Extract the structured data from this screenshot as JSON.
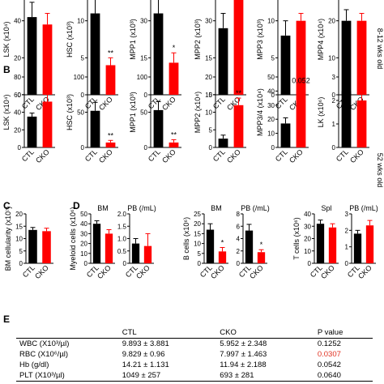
{
  "panel_labels": [
    "B",
    "C",
    "D",
    "E"
  ],
  "side_labels": [
    "8-12 wks old",
    "52 wks old"
  ],
  "chart_data": [
    {
      "type": "bar",
      "ylabel": "LSK (x10⁴)",
      "categories": [
        "CTL",
        "CKO"
      ],
      "values": [
        42,
        38
      ],
      "errors": [
        8,
        6
      ],
      "colors": [
        "#000000",
        "#ff0000"
      ],
      "ylim": [
        0,
        60
      ],
      "yticks": [
        0,
        20,
        40,
        60
      ]
    },
    {
      "type": "bar",
      "ylabel": "HSC (x10³)",
      "categories": [
        "CTL",
        "CKO"
      ],
      "values": [
        11,
        4
      ],
      "errors": [
        2.5,
        1
      ],
      "colors": [
        "#000000",
        "#ff0000"
      ],
      "ylim": [
        0,
        15
      ],
      "yticks": [
        0,
        5,
        10,
        15
      ],
      "value_annotations": [
        null,
        "**"
      ]
    },
    {
      "type": "bar",
      "ylabel": "MPP1 (x10³)",
      "categories": [
        "CTL",
        "CKO"
      ],
      "values": [
        33,
        13
      ],
      "errors": [
        8,
        4
      ],
      "colors": [
        "#000000",
        "#ff0000"
      ],
      "ylim": [
        0,
        45
      ],
      "yticks": [
        0,
        15,
        30,
        45
      ],
      "value_annotations": [
        null,
        "*"
      ]
    },
    {
      "type": "bar",
      "ylabel": "MPP2 (x10³)",
      "categories": [
        "CTL",
        "CKO"
      ],
      "values": [
        27,
        40
      ],
      "errors": [
        6,
        4
      ],
      "colors": [
        "#000000",
        "#ff0000"
      ],
      "ylim": [
        0,
        45
      ],
      "yticks": [
        0,
        15,
        30,
        45
      ]
    },
    {
      "type": "bar",
      "ylabel": "MPP3 (x10³)",
      "categories": [
        "CTL",
        "CKO"
      ],
      "values": [
        8,
        10
      ],
      "errors": [
        2,
        1
      ],
      "colors": [
        "#000000",
        "#ff0000"
      ],
      "ylim": [
        0,
        15
      ],
      "yticks": [
        0,
        5,
        10,
        15
      ]
    },
    {
      "type": "bar",
      "ylabel": "MPP4 (x10⁴)",
      "categories": [
        "CTL",
        "CKO"
      ],
      "values": [
        20,
        20
      ],
      "errors": [
        3,
        2
      ],
      "colors": [
        "#000000",
        "#ff0000"
      ],
      "ylim": [
        0,
        30
      ],
      "yticks": [
        0,
        10,
        20,
        30
      ]
    },
    {
      "type": "bar",
      "ylabel": "LSK (x10⁴)",
      "categories": [
        "CTL",
        "CKO"
      ],
      "values": [
        35,
        52
      ],
      "errors": [
        4,
        10
      ],
      "colors": [
        "#000000",
        "#ff0000"
      ],
      "ylim": [
        0,
        80
      ],
      "yticks": [
        0,
        20,
        40,
        60,
        80
      ]
    },
    {
      "type": "bar",
      "ylabel": "HSC (x10³)",
      "categories": [
        "CTL",
        "CKO"
      ],
      "values": [
        52,
        7
      ],
      "errors": [
        12,
        3
      ],
      "colors": [
        "#000000",
        "#ff0000"
      ],
      "ylim": [
        0,
        100
      ],
      "yticks": [
        0,
        50,
        100
      ],
      "value_annotations": [
        null,
        "**"
      ]
    },
    {
      "type": "bar",
      "ylabel": "MPP1 (x10³)",
      "categories": [
        "CTL",
        "CKO"
      ],
      "values": [
        53,
        7
      ],
      "errors": [
        12,
        4
      ],
      "colors": [
        "#000000",
        "#ff0000"
      ],
      "ylim": [
        0,
        100
      ],
      "yticks": [
        0,
        50,
        100
      ],
      "value_annotations": [
        null,
        "**"
      ]
    },
    {
      "type": "bar",
      "ylabel": "MPP2 (x10⁴)",
      "categories": [
        "CTL",
        "CKO"
      ],
      "values": [
        2.5,
        12
      ],
      "errors": [
        1,
        2
      ],
      "colors": [
        "#000000",
        "#ff0000"
      ],
      "ylim": [
        0,
        20
      ],
      "yticks": [
        0,
        5,
        10,
        15,
        20
      ],
      "value_annotations": [
        null,
        "**"
      ]
    },
    {
      "type": "bar",
      "ylabel": "MPP3/4 (x10⁴)",
      "categories": [
        "CTL",
        "CKO"
      ],
      "values": [
        17,
        38
      ],
      "errors": [
        4,
        6
      ],
      "colors": [
        "#000000",
        "#ff0000"
      ],
      "ylim": [
        0,
        50
      ],
      "yticks": [
        0,
        10,
        20,
        30,
        40,
        50
      ],
      "value_annotations": [
        null,
        "0.052"
      ]
    },
    {
      "type": "bar",
      "ylabel": "LK (x10⁶)",
      "categories": [
        "CTL",
        "CKO"
      ],
      "values": [
        2.4,
        2.0
      ],
      "errors": [
        0.4,
        0.3
      ],
      "colors": [
        "#000000",
        "#ff0000"
      ],
      "ylim": [
        0,
        3
      ],
      "yticks": [
        0,
        1,
        2,
        3
      ]
    },
    {
      "type": "bar",
      "ylabel": "BM cellularity (x10⁷)",
      "categories": [
        "CTL",
        "CKO"
      ],
      "values": [
        13.5,
        13
      ],
      "errors": [
        1,
        1.2
      ],
      "colors": [
        "#000000",
        "#ff0000"
      ],
      "ylim": [
        0,
        20
      ],
      "yticks": [
        0,
        5,
        10,
        15,
        20
      ]
    },
    {
      "type": "bar",
      "ylabel": "Myeloid cells (x10⁶)",
      "title": "BM",
      "categories": [
        "CTL",
        "CKO"
      ],
      "values": [
        40,
        30
      ],
      "errors": [
        3,
        4
      ],
      "colors": [
        "#000000",
        "#ff0000"
      ],
      "ylim": [
        0,
        50
      ],
      "yticks": [
        0,
        10,
        20,
        30,
        40,
        50
      ]
    },
    {
      "type": "bar",
      "title": "PB (/mL)",
      "categories": [
        "CTL",
        "CKO"
      ],
      "values": [
        0.8,
        0.7
      ],
      "errors": [
        0.2,
        0.5
      ],
      "colors": [
        "#000000",
        "#ff0000"
      ],
      "ylim": [
        0,
        2
      ],
      "yticks": [
        0,
        0.5,
        {
          "value": 1,
          "label": "1.0"
        },
        1.5,
        {
          "value": 2,
          "label": "2.0"
        }
      ]
    },
    {
      "type": "bar",
      "ylabel": "B cells (x10⁶)",
      "title": "BM",
      "categories": [
        "CTL",
        "CKO"
      ],
      "values": [
        17,
        6
      ],
      "errors": [
        3,
        2
      ],
      "colors": [
        "#000000",
        "#ff0000"
      ],
      "ylim": [
        0,
        25
      ],
      "yticks": [
        0,
        5,
        10,
        15,
        20,
        25
      ],
      "value_annotations": [
        null,
        "*"
      ]
    },
    {
      "type": "bar",
      "title": "PB (/mL)",
      "categories": [
        "CTL",
        "CKO"
      ],
      "values": [
        5.3,
        1.8
      ],
      "errors": [
        1,
        0.4
      ],
      "colors": [
        "#000000",
        "#ff0000"
      ],
      "ylim": [
        0,
        8
      ],
      "yticks": [
        0,
        2,
        4,
        6,
        8
      ],
      "value_annotations": [
        null,
        "*"
      ]
    },
    {
      "type": "bar",
      "ylabel": "T cells (x10⁶)",
      "title": "Spl",
      "categories": [
        "CTL",
        "CKO"
      ],
      "values": [
        32,
        29
      ],
      "errors": [
        3,
        3
      ],
      "colors": [
        "#000000",
        "#ff0000"
      ],
      "ylim": [
        0,
        40
      ],
      "yticks": [
        0,
        10,
        20,
        30,
        40
      ]
    },
    {
      "type": "bar",
      "title": "PB (/mL)",
      "categories": [
        "CTL",
        "CKO"
      ],
      "values": [
        1.8,
        2.3
      ],
      "errors": [
        0.2,
        0.3
      ],
      "colors": [
        "#000000",
        "#ff0000"
      ],
      "ylim": [
        0,
        3
      ],
      "yticks": [
        0,
        1,
        2,
        3
      ]
    }
  ],
  "table": {
    "header": [
      "CTL",
      "CKO",
      "P value"
    ],
    "rows": [
      [
        "WBC (X10³/µl)",
        "9.893 ± 3.881",
        "5.952 ± 2.348",
        "0.1252"
      ],
      [
        "RBC (X10⁶/µl)",
        "9.829 ± 0.96",
        "7.997 ± 1.463",
        "0.0307"
      ],
      [
        "Hb (g/dl)",
        "14.21 ± 1.131",
        "11.94 ± 2.188",
        "0.0542"
      ],
      [
        "PLT (X10³/µl)",
        "1049 ± 257",
        "693 ± 281",
        "0.0640"
      ]
    ],
    "highlight_cells": [
      [
        1,
        3
      ]
    ],
    "highlight_color": "#e03020"
  }
}
